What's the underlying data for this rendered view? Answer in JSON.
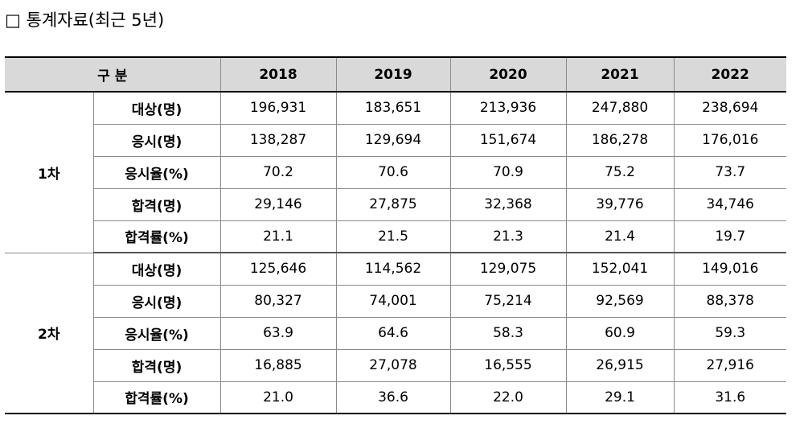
{
  "heading": "□ 통계자료(최근 5년)",
  "table": {
    "category_header": "구 분",
    "years": [
      "2018",
      "2019",
      "2020",
      "2021",
      "2022"
    ],
    "groups": [
      {
        "label": "1차",
        "rows": [
          {
            "metric": "대상(명)",
            "values": [
              "196,931",
              "183,651",
              "213,936",
              "247,880",
              "238,694"
            ]
          },
          {
            "metric": "응시(명)",
            "values": [
              "138,287",
              "129,694",
              "151,674",
              "186,278",
              "176,016"
            ]
          },
          {
            "metric": "응시율(%)",
            "values": [
              "70.2",
              "70.6",
              "70.9",
              "75.2",
              "73.7"
            ]
          },
          {
            "metric": "합격(명)",
            "values": [
              "29,146",
              "27,875",
              "32,368",
              "39,776",
              "34,746"
            ]
          },
          {
            "metric": "합격률(%)",
            "values": [
              "21.1",
              "21.5",
              "21.3",
              "21.4",
              "19.7"
            ]
          }
        ]
      },
      {
        "label": "2차",
        "rows": [
          {
            "metric": "대상(명)",
            "values": [
              "125,646",
              "114,562",
              "129,075",
              "152,041",
              "149,016"
            ]
          },
          {
            "metric": "응시(명)",
            "values": [
              "80,327",
              "74,001",
              "75,214",
              "92,569",
              "88,378"
            ]
          },
          {
            "metric": "응시율(%)",
            "values": [
              "63.9",
              "64.6",
              "58.3",
              "60.9",
              "59.3"
            ]
          },
          {
            "metric": "합격(명)",
            "values": [
              "16,885",
              "27,078",
              "16,555",
              "26,915",
              "27,916"
            ]
          },
          {
            "metric": "합격률(%)",
            "values": [
              "21.0",
              "36.6",
              "22.0",
              "29.1",
              "31.6"
            ]
          }
        ]
      }
    ]
  }
}
